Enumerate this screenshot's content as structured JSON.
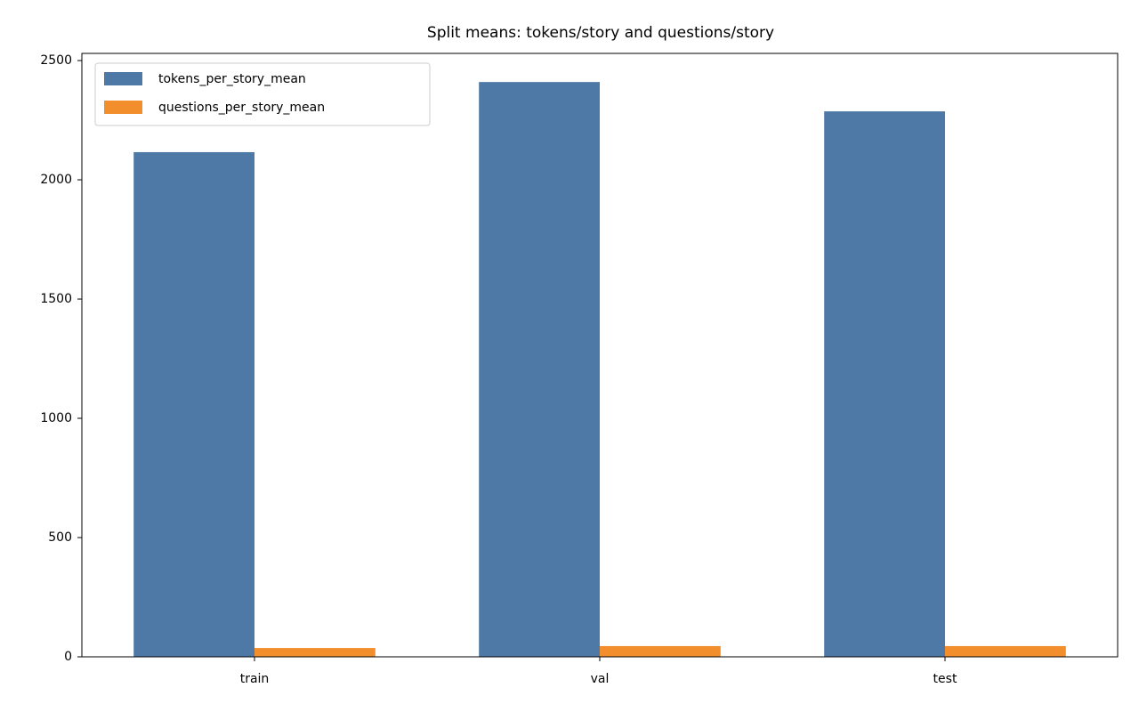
{
  "chart_data": {
    "type": "bar",
    "title": "Split means: tokens/story and questions/story",
    "categories": [
      "train",
      "val",
      "test"
    ],
    "series": [
      {
        "name": "tokens_per_story_mean",
        "color": "#4e79a7",
        "values": [
          2116,
          2410,
          2287
        ]
      },
      {
        "name": "questions_per_story_mean",
        "color": "#f28e2b",
        "values": [
          37,
          45,
          45
        ]
      }
    ],
    "ylim": [
      0,
      2530
    ],
    "yticks": [
      0,
      500,
      1000,
      1500,
      2000,
      2500
    ],
    "grid": false,
    "legend": "upper left"
  }
}
